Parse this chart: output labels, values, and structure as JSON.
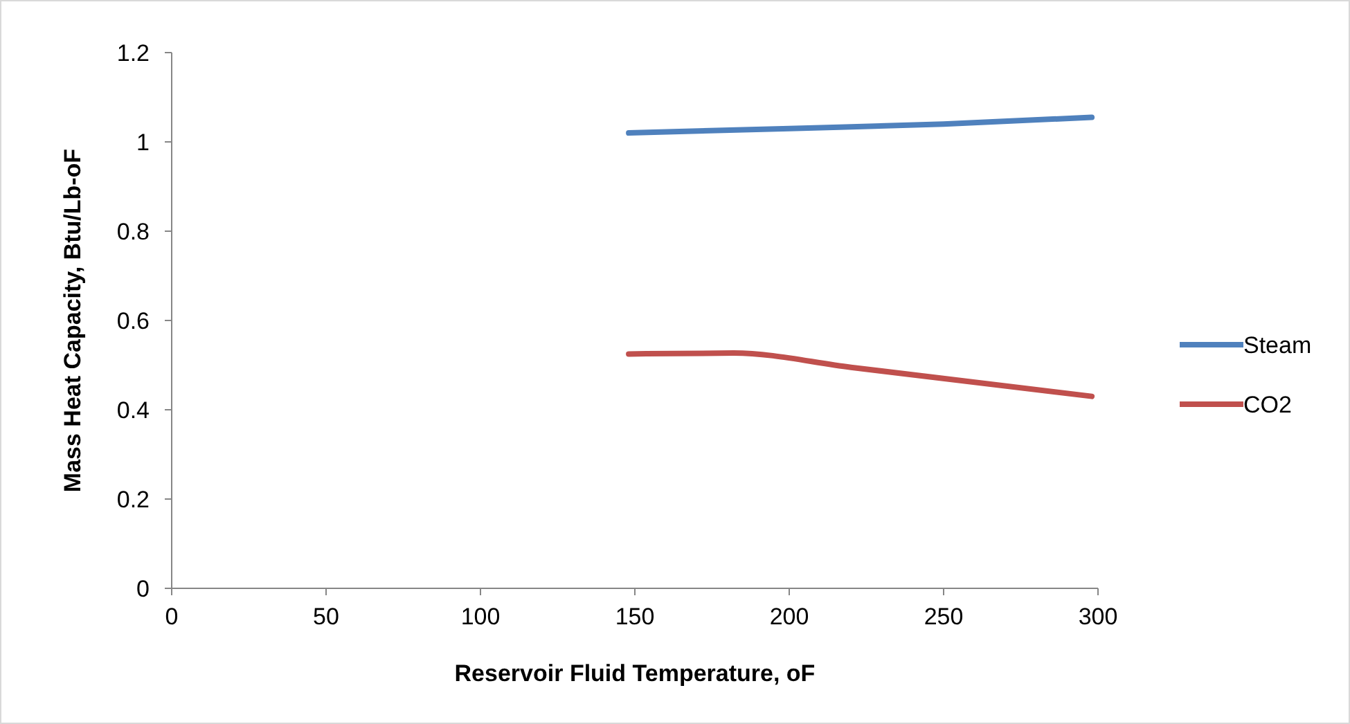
{
  "chart_data": {
    "type": "line",
    "xlabel": "Reservoir Fluid Temperature, oF",
    "ylabel": "Mass Heat Capacity, Btu/Lb-oF",
    "xlim": [
      0,
      300
    ],
    "xticks": [
      0,
      50,
      100,
      150,
      200,
      250,
      300
    ],
    "ylim": [
      0,
      1.2
    ],
    "yticks": [
      {
        "value": 0,
        "label": "0"
      },
      {
        "value": 0.2,
        "label": "0.2"
      },
      {
        "value": 0.4,
        "label": "0.4"
      },
      {
        "value": 0.6,
        "label": "0.6"
      },
      {
        "value": 0.8,
        "label": "0.8"
      },
      {
        "value": 1,
        "label": "1"
      },
      {
        "value": 1.2,
        "label": "1.2"
      }
    ],
    "grid": false,
    "legend": "right",
    "marker": "none",
    "line_style": "solid",
    "series": [
      {
        "name": "Steam",
        "color": "#4f81bd",
        "x": [
          148,
          200,
          250,
          298
        ],
        "values": [
          1.02,
          1.03,
          1.04,
          1.055
        ]
      },
      {
        "name": "CO2",
        "color": "#c0504d",
        "x": [
          148,
          182,
          220,
          298
        ],
        "values": [
          0.525,
          0.527,
          0.495,
          0.43
        ]
      }
    ]
  }
}
